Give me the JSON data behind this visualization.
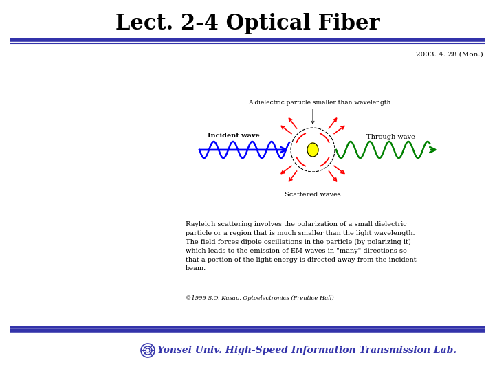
{
  "title": "Lect. 2-4 Optical Fiber",
  "date": "2003. 4. 28 (Mon.)",
  "footer": "Yonsei Univ. High-Speed Information Transmission Lab.",
  "title_color": "#000000",
  "bar_color": "#3333aa",
  "bg_color": "#ffffff",
  "diagram_label_top": "A dielectric particle smaller than wavelength",
  "diagram_label_left": "Incident wave",
  "diagram_label_right": "Through wave",
  "diagram_label_bottom": "Scattered waves",
  "body_text": "Rayleigh scattering involves the polarization of a small dielectric\nparticle or a region that is much smaller than the light wavelength.\nThe field forces dipole oscillations in the particle (by polarizing it)\nwhich leads to the emission of EM waves in \"many\" directions so\nthat a portion of the light energy is directed away from the incident\nbeam.",
  "citation": "©1999 S.O. Kasap, Optoelectronics (Prentice Hall)"
}
